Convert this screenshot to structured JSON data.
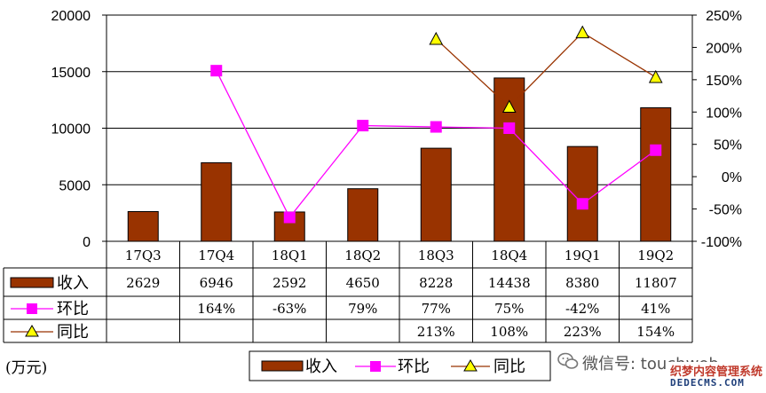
{
  "chart_data": {
    "type": "bar",
    "categories": [
      "17Q3",
      "17Q4",
      "18Q1",
      "18Q2",
      "18Q3",
      "18Q4",
      "19Q1",
      "19Q2"
    ],
    "series": [
      {
        "name": "收入",
        "kind": "bar",
        "axis": "left",
        "color": "#993300",
        "values": [
          2629,
          6946,
          2592,
          4650,
          8228,
          14438,
          8380,
          11807
        ],
        "labels": [
          "2629",
          "6946",
          "2592",
          "4650",
          "8228",
          "14438",
          "8380",
          "11807"
        ]
      },
      {
        "name": "环比",
        "kind": "line",
        "axis": "right",
        "color": "#ff00ff",
        "marker": "square",
        "values": [
          null,
          164,
          -63,
          79,
          77,
          75,
          -42,
          41
        ],
        "labels": [
          "",
          "164%",
          "-63%",
          "79%",
          "77%",
          "75%",
          "-42%",
          "41%"
        ]
      },
      {
        "name": "同比",
        "kind": "line",
        "axis": "right",
        "color": "#993300",
        "marker": "triangle",
        "marker_fill": "#ffff00",
        "values": [
          null,
          null,
          null,
          null,
          213,
          108,
          223,
          154
        ],
        "labels": [
          "",
          "",
          "",
          "",
          "213%",
          "108%",
          "223%",
          "154%"
        ]
      }
    ],
    "left_axis": {
      "min": 0,
      "max": 20000,
      "ticks": [
        "0",
        "5000",
        "10000",
        "15000",
        "20000"
      ]
    },
    "right_axis": {
      "min": -100,
      "max": 250,
      "ticks": [
        "-100%",
        "-50%",
        "0%",
        "50%",
        "100%",
        "150%",
        "200%",
        "250%"
      ]
    },
    "unit_label": "(万元)",
    "legend": {
      "placement": "bottom-center",
      "items": [
        "收入",
        "环比",
        "同比"
      ]
    },
    "grid": true
  },
  "watermark": {
    "line1": "微信号: touchweb",
    "cn": "织梦内容管理系统",
    "en": "DEDECMS.COM"
  }
}
